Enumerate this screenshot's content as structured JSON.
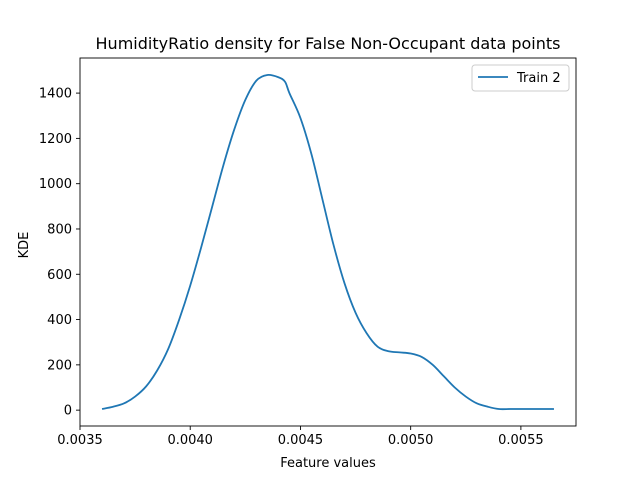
{
  "chart_data": {
    "type": "line",
    "title": "HumidityRatio density for False Non-Occupant data points",
    "xlabel": "Feature values",
    "ylabel": "KDE",
    "xlim": [
      0.0035,
      0.00575
    ],
    "ylim": [
      -70,
      1555
    ],
    "xticks": [
      {
        "value": 0.0035,
        "label": "0.0035"
      },
      {
        "value": 0.004,
        "label": "0.0040"
      },
      {
        "value": 0.0045,
        "label": "0.0045"
      },
      {
        "value": 0.005,
        "label": "0.0050"
      },
      {
        "value": 0.0055,
        "label": "0.0055"
      }
    ],
    "yticks": [
      {
        "value": 0,
        "label": "0"
      },
      {
        "value": 200,
        "label": "200"
      },
      {
        "value": 400,
        "label": "400"
      },
      {
        "value": 600,
        "label": "600"
      },
      {
        "value": 800,
        "label": "800"
      },
      {
        "value": 1000,
        "label": "1000"
      },
      {
        "value": 1200,
        "label": "1200"
      },
      {
        "value": 1400,
        "label": "1400"
      }
    ],
    "grid": false,
    "legend": "top-right",
    "series": [
      {
        "name": "Train 2",
        "color": "#1f77b4",
        "x": [
          0.0036,
          0.00365,
          0.0037,
          0.00375,
          0.0038,
          0.00385,
          0.0039,
          0.00395,
          0.004,
          0.00405,
          0.0041,
          0.00415,
          0.0042,
          0.00425,
          0.0043,
          0.00435,
          0.0044,
          0.00443,
          0.00445,
          0.0045,
          0.00455,
          0.0046,
          0.00465,
          0.0047,
          0.00475,
          0.0048,
          0.00485,
          0.0049,
          0.00495,
          0.005,
          0.00505,
          0.0051,
          0.00515,
          0.0052,
          0.00525,
          0.0053,
          0.00535,
          0.0054,
          0.00545,
          0.0055,
          0.00555,
          0.0056,
          0.00565
        ],
        "y": [
          5,
          15,
          30,
          60,
          105,
          175,
          270,
          400,
          550,
          720,
          900,
          1080,
          1240,
          1370,
          1455,
          1480,
          1470,
          1450,
          1400,
          1290,
          1130,
          930,
          730,
          560,
          430,
          340,
          280,
          260,
          255,
          250,
          235,
          200,
          150,
          100,
          60,
          30,
          15,
          5,
          5,
          5,
          5,
          5,
          5
        ]
      }
    ]
  }
}
